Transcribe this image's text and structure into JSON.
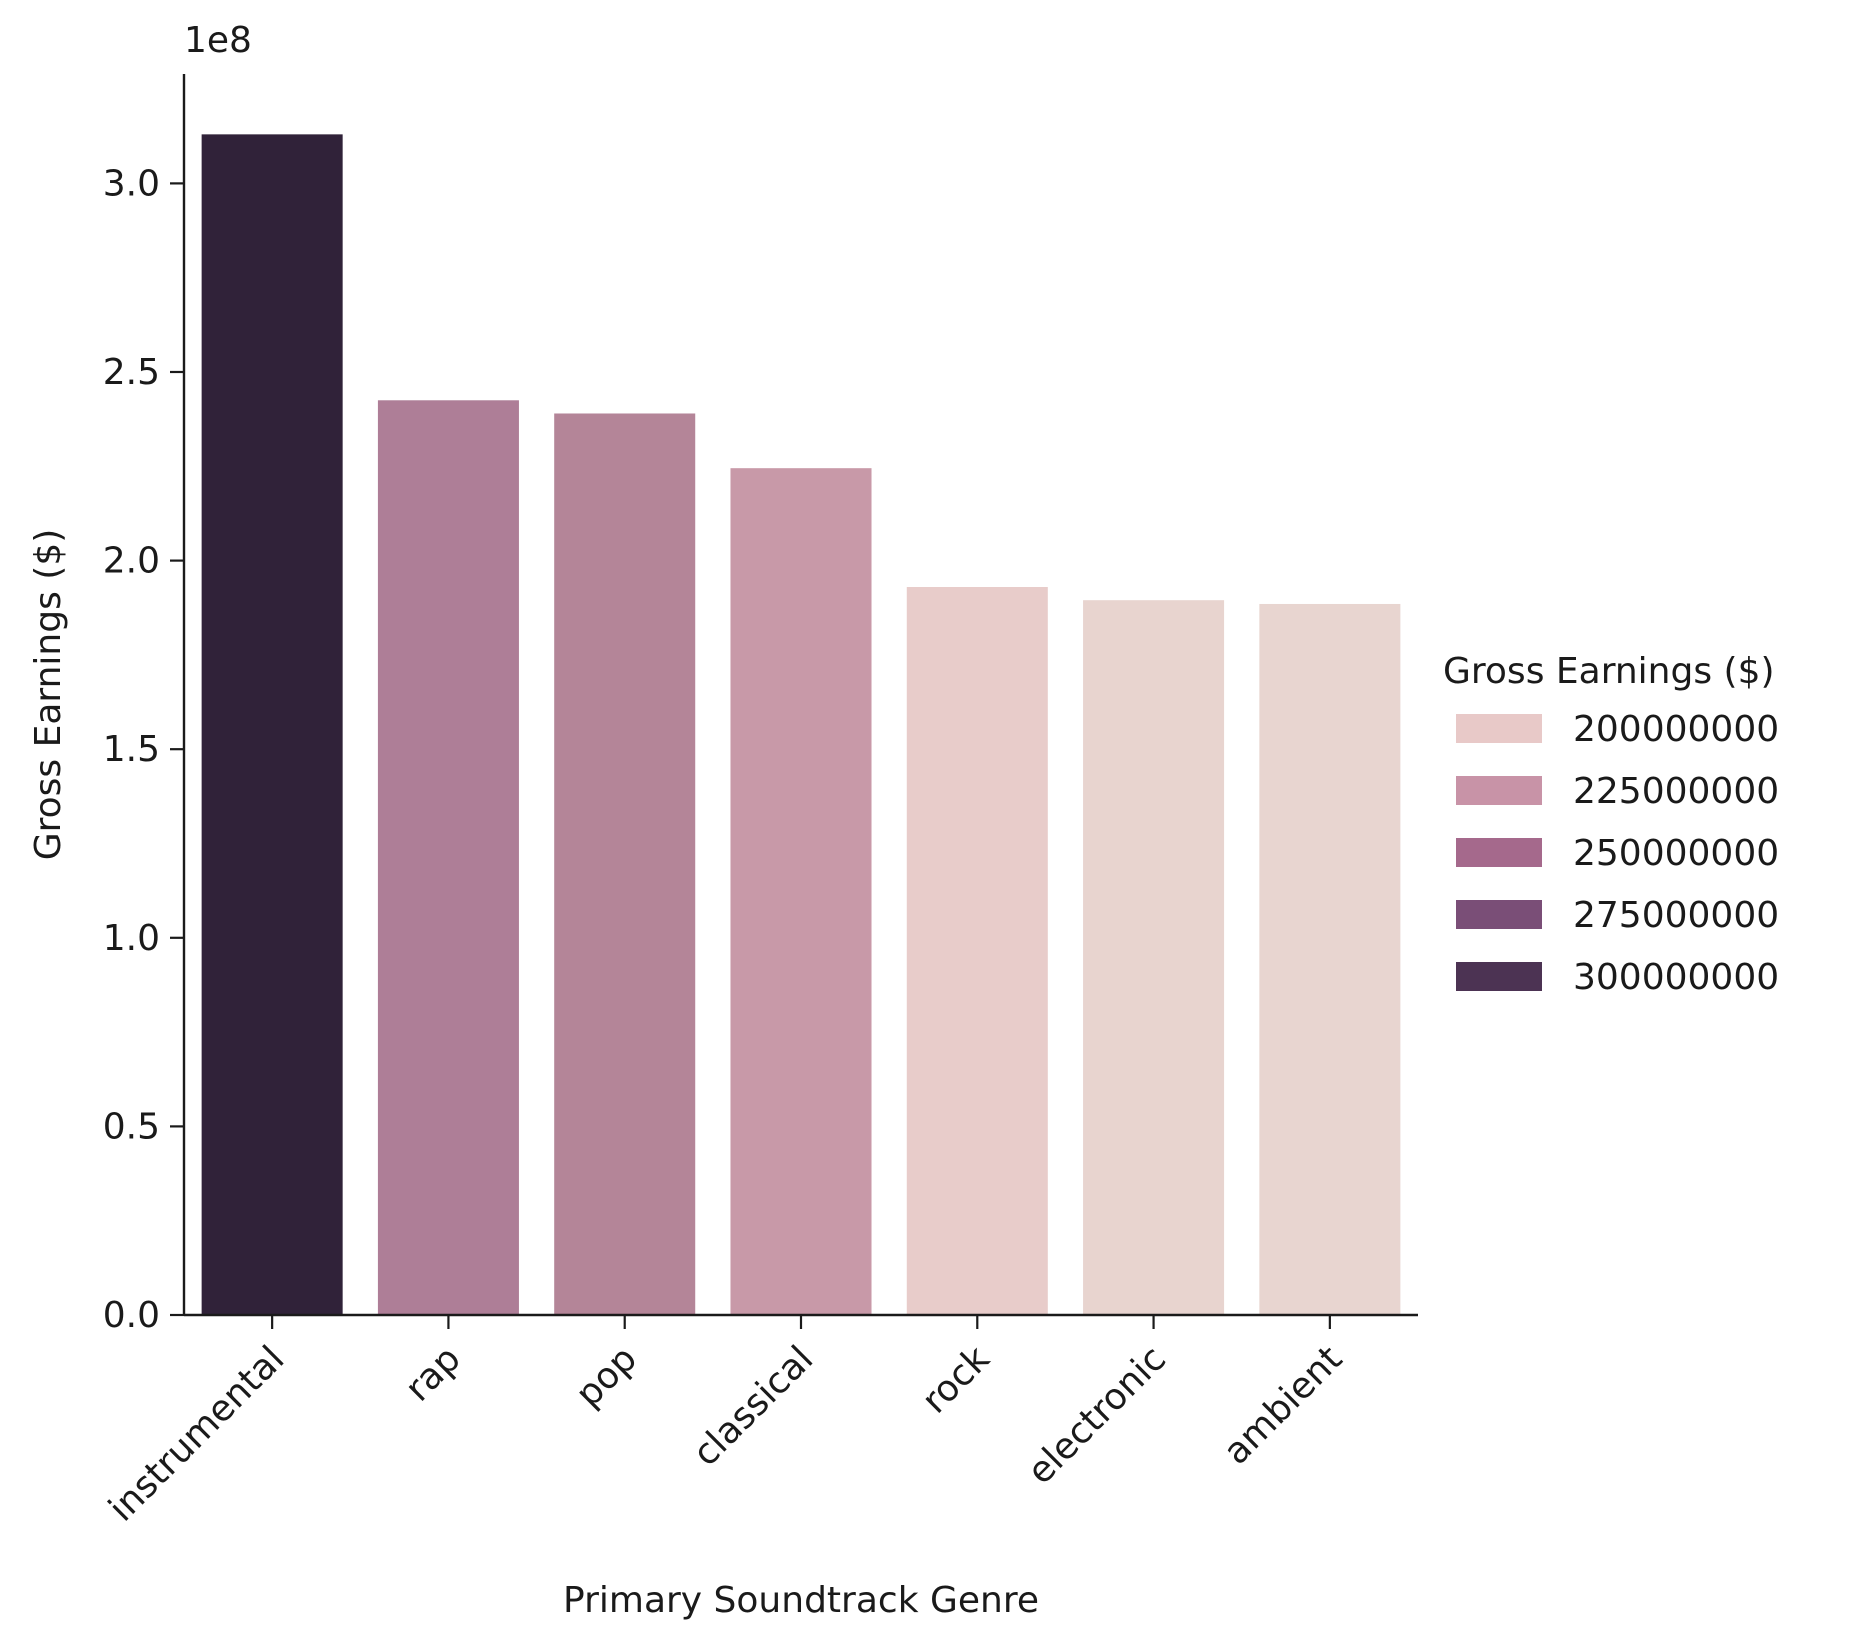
{
  "chart_data": {
    "type": "bar",
    "categories": [
      "instrumental",
      "rap",
      "pop",
      "classical",
      "rock",
      "electronic",
      "ambient"
    ],
    "values": [
      313000000,
      242500000,
      239000000,
      224500000,
      193000000,
      189500000,
      188500000
    ],
    "title": "",
    "xlabel": "Primary Soundtrack Genre",
    "ylabel": "Gross Earnings ($)",
    "y_offset_label": "1e8",
    "ylim": [
      0,
      329000000
    ],
    "y_ticks": [
      0,
      50000000,
      100000000,
      150000000,
      200000000,
      250000000,
      300000000
    ],
    "y_tick_labels": [
      "0.0",
      "0.5",
      "1.0",
      "1.5",
      "2.0",
      "2.5",
      "3.0"
    ],
    "x_tick_rotation": -45,
    "grid": false,
    "bar_colors": [
      "#302239",
      "#ae7e97",
      "#b48598",
      "#c899a8",
      "#e8ccca",
      "#e8d4cf",
      "#e8d5d0"
    ],
    "legend": {
      "title": "Gross Earnings ($)",
      "placement": "right",
      "entries": [
        {
          "label": "200000000",
          "color": "#e8c9c8"
        },
        {
          "label": "225000000",
          "color": "#c893a7"
        },
        {
          "label": "250000000",
          "color": "#a5698c"
        },
        {
          "label": "275000000",
          "color": "#7a4e77"
        },
        {
          "label": "300000000",
          "color": "#4c3353"
        }
      ]
    }
  }
}
